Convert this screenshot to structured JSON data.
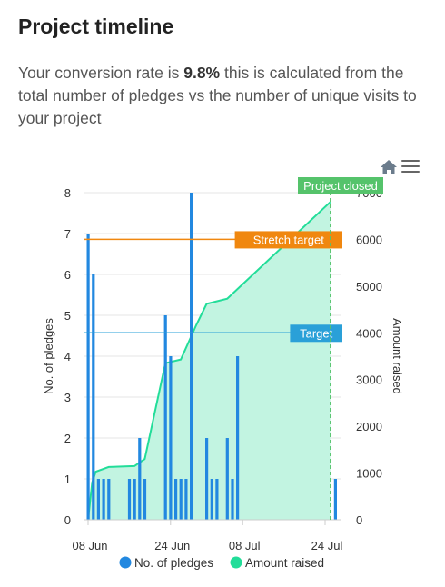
{
  "header": {
    "title": "Project timeline",
    "desc_before": "Your conversion rate is ",
    "desc_rate": "9.8%",
    "desc_after": " this is calculated from the total number of pledges vs the number of unique visits to your project"
  },
  "toolbar": {
    "home_icon": "home-icon",
    "menu_icon": "hamburger-menu-icon"
  },
  "chart_data": {
    "type": "bar+area",
    "x_start_day": 0,
    "x_end_day": 47,
    "x_ticks": [
      {
        "day": 0,
        "label": "08 Jun"
      },
      {
        "day": 16,
        "label": "24 Jun"
      },
      {
        "day": 30,
        "label": "08 Jul"
      },
      {
        "day": 46,
        "label": "24 Jul"
      }
    ],
    "y_left": {
      "label": "No. of pledges",
      "min": 0,
      "max": 8,
      "ticks": [
        0,
        1,
        2,
        3,
        4,
        5,
        6,
        7,
        8
      ]
    },
    "y_right": {
      "label": "Amount raised",
      "min": 0,
      "max": 7000,
      "ticks": [
        0,
        1000,
        2000,
        3000,
        4000,
        5000,
        6000,
        7000
      ]
    },
    "bars": {
      "name": "No. of pledges",
      "color": "#2288e0",
      "points": [
        {
          "day": 0,
          "value": 7
        },
        {
          "day": 1,
          "value": 6
        },
        {
          "day": 2,
          "value": 1
        },
        {
          "day": 3,
          "value": 1
        },
        {
          "day": 4,
          "value": 1
        },
        {
          "day": 8,
          "value": 1
        },
        {
          "day": 9,
          "value": 1
        },
        {
          "day": 10,
          "value": 2
        },
        {
          "day": 11,
          "value": 1
        },
        {
          "day": 15,
          "value": 5
        },
        {
          "day": 16,
          "value": 4
        },
        {
          "day": 17,
          "value": 1
        },
        {
          "day": 18,
          "value": 1
        },
        {
          "day": 19,
          "value": 1
        },
        {
          "day": 20,
          "value": 8
        },
        {
          "day": 23,
          "value": 2
        },
        {
          "day": 24,
          "value": 1
        },
        {
          "day": 25,
          "value": 1
        },
        {
          "day": 27,
          "value": 2
        },
        {
          "day": 28,
          "value": 1
        },
        {
          "day": 29,
          "value": 4
        },
        {
          "day": 48,
          "value": 1
        }
      ]
    },
    "area": {
      "name": "Amount raised",
      "color": "#22dd99",
      "fill": "#c2f4e1",
      "points": [
        {
          "day": 0,
          "value": 0
        },
        {
          "day": 0.8,
          "value": 800
        },
        {
          "day": 1.5,
          "value": 1030
        },
        {
          "day": 4,
          "value": 1130
        },
        {
          "day": 9,
          "value": 1150
        },
        {
          "day": 11,
          "value": 1300
        },
        {
          "day": 15,
          "value": 3350
        },
        {
          "day": 18,
          "value": 3430
        },
        {
          "day": 21,
          "value": 4170
        },
        {
          "day": 23,
          "value": 4620
        },
        {
          "day": 27,
          "value": 4730
        },
        {
          "day": 47,
          "value": 6800
        }
      ]
    },
    "plot_lines": [
      {
        "label": "Stretch target",
        "value": 6000,
        "color": "#f0870f"
      },
      {
        "label": "Target",
        "value": 4000,
        "color": "#2aa0d8"
      }
    ],
    "closed_marker": {
      "label": "Project closed",
      "day": 47,
      "color": "#55c36b"
    },
    "legend": {
      "position": "bottom"
    }
  }
}
